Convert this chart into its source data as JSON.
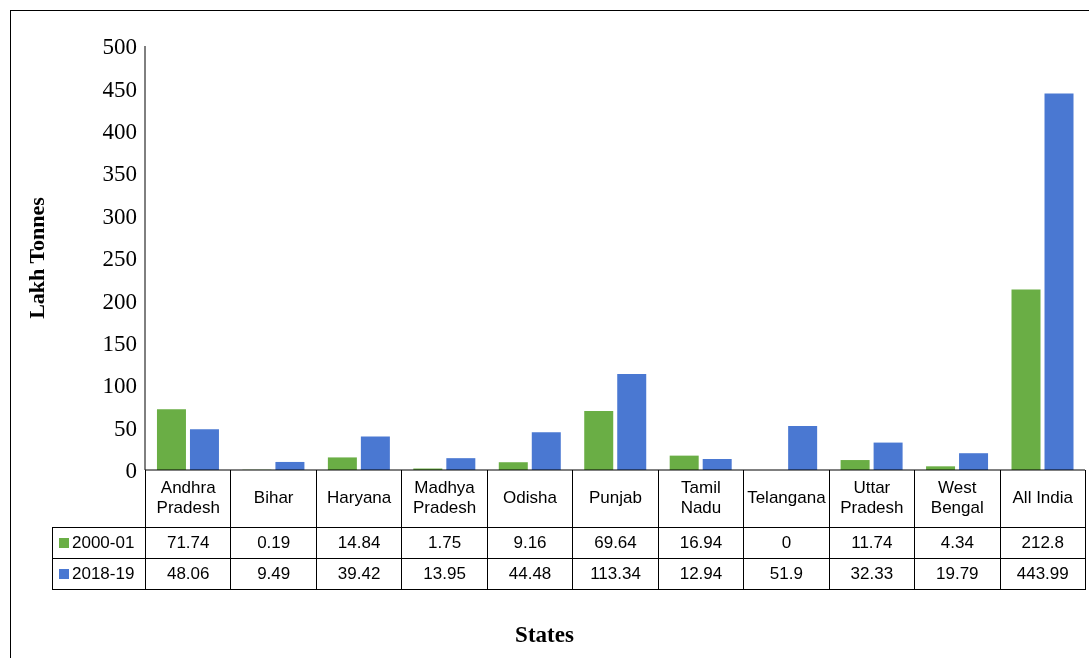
{
  "chart_data": {
    "type": "bar",
    "xlabel": "States",
    "ylabel": "Lakh Tonnes",
    "categories": [
      "Andhra Pradesh",
      "Bihar",
      "Haryana",
      "Madhya Pradesh",
      "Odisha",
      "Punjab",
      "Tamil Nadu",
      "Telangana",
      "Uttar Pradesh",
      "West Bengal",
      "All India"
    ],
    "series": [
      {
        "name": "2000-01",
        "color": "#6aae45",
        "values": [
          71.74,
          0.19,
          14.84,
          1.75,
          9.16,
          69.64,
          16.94,
          0,
          11.74,
          4.34,
          212.8
        ]
      },
      {
        "name": "2018-19",
        "color": "#4a78d2",
        "values": [
          48.06,
          9.49,
          39.42,
          13.95,
          44.48,
          113.34,
          12.94,
          51.9,
          32.33,
          19.79,
          443.99
        ]
      }
    ],
    "ylim": [
      0,
      500
    ],
    "yticks": [
      0,
      50,
      100,
      150,
      200,
      250,
      300,
      350,
      400,
      450,
      500
    ],
    "legend": "bottom",
    "data_labels": true
  }
}
